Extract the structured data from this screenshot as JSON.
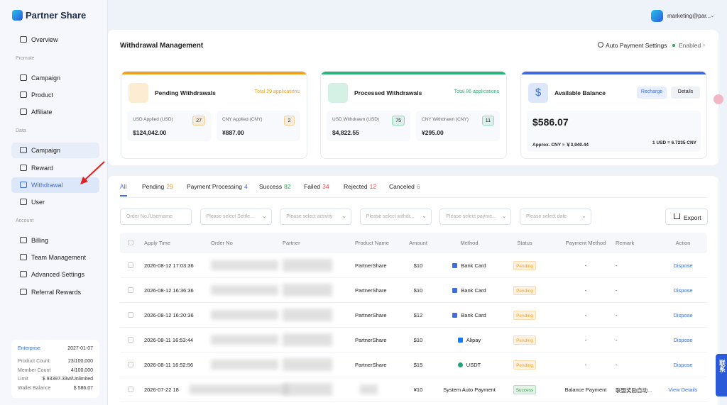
{
  "sidebar": {
    "brand": "Partner Share",
    "overview": "Overview",
    "sections": [
      {
        "title": "Promote",
        "items": [
          "Campaign",
          "Product",
          "Affiliate"
        ]
      },
      {
        "title": "Data",
        "items": [
          "Campaign",
          "Reward",
          "Withdrawal",
          "User"
        ]
      },
      {
        "title": "Account",
        "items": [
          "Billing",
          "Team Management",
          "Advanced Settings",
          "Referral Rewards"
        ]
      }
    ],
    "plan": {
      "name": "Enterprise",
      "expiry": "2027-01-07",
      "rows": [
        [
          "Product Count",
          "23/100,000"
        ],
        [
          "Member Count",
          "4/100,000"
        ],
        [
          "Limit",
          "$ 93397.33w/Unlimited"
        ],
        [
          "Wallet Balance",
          "$ 586.07"
        ]
      ]
    }
  },
  "header": {
    "user": "marketing@par..."
  },
  "page": {
    "title": "Withdrawal Management",
    "auto_payment": "Auto Payment Settings",
    "status": "Enabled"
  },
  "cards": [
    {
      "title": "Pending Withdrawals",
      "total": "Total 29 applications",
      "color": "#f0a020",
      "stats": [
        {
          "label": "USD Applied (USD)",
          "count": "27",
          "amount": "$124,042.00"
        },
        {
          "label": "CNY Applied (CNY)",
          "count": "2",
          "amount": "¥887.00"
        }
      ]
    },
    {
      "title": "Processed Withdrawals",
      "total": "Total 86 applications",
      "color": "#2fb37a",
      "stats": [
        {
          "label": "USD Withdrawn (USD)",
          "count": "75",
          "amount": "$4,822.55"
        },
        {
          "label": "CNY Withdrawn (CNY)",
          "count": "11",
          "amount": "¥295.00"
        }
      ]
    }
  ],
  "balance": {
    "title": "Available Balance",
    "buttons": [
      "Recharge",
      "Details"
    ],
    "amount": "$586.07",
    "approx": "Approx. CNY ≈ ￥3,940.44",
    "rate": "1 USD = 6.7235 CNY"
  },
  "tabs": [
    {
      "label": "All"
    },
    {
      "label": "Pending",
      "count": "29",
      "color": "#f0a020"
    },
    {
      "label": "Payment Processing",
      "count": "4",
      "color": "#3b6fe0"
    },
    {
      "label": "Success",
      "count": "82",
      "color": "#2fa84f"
    },
    {
      "label": "Failed",
      "count": "34",
      "color": "#e5484d"
    },
    {
      "label": "Rejected",
      "count": "12",
      "color": "#e5484d"
    },
    {
      "label": "Canceled",
      "count": "6",
      "color": "#999999"
    }
  ],
  "filters": [
    "Order No./Username",
    "Please select Settle...",
    "Please select activity",
    "Please select withdr...",
    "Please select payme...",
    "Please select date"
  ],
  "export": "Export",
  "table": {
    "columns": [
      "Apply Time",
      "Order No",
      "Partner",
      "Product Name",
      "Amount",
      "Method",
      "Status",
      "Payment Method",
      "Remark",
      "Action"
    ],
    "rows": [
      {
        "apply_time": "2026-08-12 17:03:36",
        "product": "PartnerShare",
        "amount": "$10",
        "method": "Bank Card",
        "method_color": "#3b6fe0",
        "status": "Pending",
        "status_color": "#f0a020",
        "payment_method": "-",
        "remark": "-",
        "action": "Dispose"
      },
      {
        "apply_time": "2026-08-12 16:36:36",
        "product": "PartnerShare",
        "amount": "$10",
        "method": "Bank Card",
        "method_color": "#3b6fe0",
        "status": "Pending",
        "status_color": "#f0a020",
        "payment_method": "-",
        "remark": "-",
        "action": "Dispose"
      },
      {
        "apply_time": "2026-08-12 16:20:36",
        "product": "PartnerShare",
        "amount": "$12",
        "method": "Bank Card",
        "method_color": "#3b6fe0",
        "status": "Pending",
        "status_color": "#f0a020",
        "payment_method": "-",
        "remark": "-",
        "action": "Dispose"
      },
      {
        "apply_time": "2026-08-11 16:53:44",
        "product": "PartnerShare",
        "amount": "$10",
        "method": "Alipay",
        "method_color": "#1677ff",
        "status": "Pending",
        "status_color": "#f0a020",
        "payment_method": "-",
        "remark": "-",
        "action": "Dispose"
      },
      {
        "apply_time": "2026-08-11 16:52:56",
        "product": "PartnerShare",
        "amount": "$15",
        "method": "USDT",
        "method_color": "#26a17b",
        "status": "Pending",
        "status_color": "#f0a020",
        "payment_method": "-",
        "remark": "-",
        "action": "Dispose"
      },
      {
        "apply_time": "2026-07-22 18",
        "product": "",
        "amount": "¥10",
        "method": "System Auto Payment",
        "status": "Success",
        "status_color": "#2fa84f",
        "payment_method": "Balance Payment",
        "remark": "联盟奖励自动...",
        "action": "View Details"
      }
    ]
  },
  "contact": "联系"
}
